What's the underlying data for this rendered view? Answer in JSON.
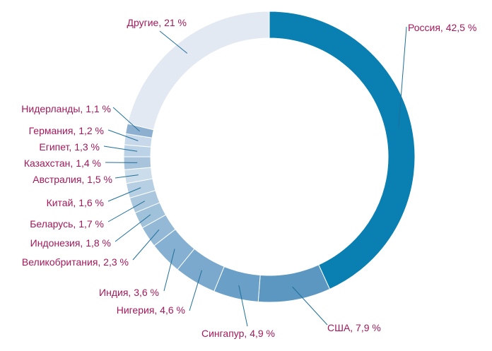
{
  "chart_data": {
    "type": "pie",
    "variant": "donut",
    "title": "",
    "legend": "none",
    "categories": [
      "Россия",
      "США",
      "Сингапур",
      "Нигерия",
      "Индия",
      "Великобритания",
      "Индонезия",
      "Беларусь",
      "Китай",
      "Австралия",
      "Казахстан",
      "Египет",
      "Германия",
      "Нидерланды",
      "Другие"
    ],
    "values": [
      42.5,
      7.9,
      4.9,
      4.6,
      3.6,
      2.3,
      1.8,
      1.7,
      1.6,
      1.5,
      1.4,
      1.3,
      1.2,
      1.1,
      21
    ],
    "labels": [
      "Россия, 42,5 %",
      "США, 7,9 %",
      "Сингапур, 4,9 %",
      "Нигерия, 4,6 %",
      "Индия, 3,6 %",
      "Великобритания, 2,3 %",
      "Индонезия, 1,8 %",
      "Беларусь, 1,7 %",
      "Китай, 1,6 %",
      "Австралия, 1,5 %",
      "Казахстан, 1,4 %",
      "Египет, 1,3 %",
      "Германия, 1,2 %",
      "Нидерланды, 1,1 %",
      "Другие, 21 %"
    ],
    "colors": [
      "#0a7fb1",
      "#5b97c1",
      "#6a9fc7",
      "#7aa9cd",
      "#86b0d1",
      "#93b9d6",
      "#a0c1da",
      "#abc7de",
      "#b6cfe3",
      "#cbdcea",
      "#a8c3dc",
      "#bcd2e6",
      "#c6d8e9",
      "#8eb0d0",
      "#e3e9f2"
    ],
    "label_color": "#a3195b",
    "leader_color": "#1f6f9a"
  }
}
